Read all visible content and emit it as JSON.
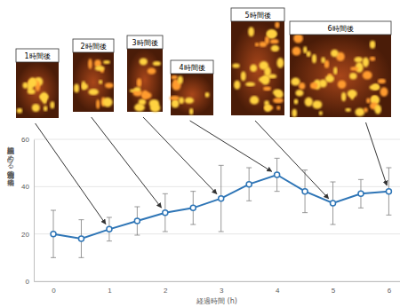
{
  "chart_data": {
    "type": "line",
    "y_label": "細胞面積に占める油滴割合の平均値(%)",
    "x_label": "経過時間 (h)",
    "x": [
      0,
      0.5,
      1,
      1.5,
      2,
      2.5,
      3,
      3.5,
      4,
      4.5,
      5,
      5.5,
      6
    ],
    "values": [
      20,
      18,
      22,
      25.5,
      29,
      31,
      35,
      41,
      45,
      38,
      33,
      37,
      38
    ],
    "errors": [
      10,
      8,
      5,
      6,
      8,
      7,
      14,
      7,
      7,
      9,
      9,
      6,
      10
    ],
    "color": "#2e75b6",
    "marker": "circle",
    "xlim": [
      -0.35,
      6.2
    ],
    "xticks": [
      0,
      1,
      2,
      3,
      4,
      5,
      6
    ],
    "ylim": [
      0,
      60
    ],
    "yticks": [
      0,
      20,
      40,
      60
    ],
    "grid": true,
    "annotations": [
      {
        "text": "1時間後",
        "x": 1
      },
      {
        "text": "2時間後",
        "x": 2
      },
      {
        "text": "3時間後",
        "x": 3
      },
      {
        "text": "4時間後",
        "x": 4
      },
      {
        "text": "5時間後",
        "x": 5
      },
      {
        "text": "6時間後",
        "x": 6
      }
    ]
  }
}
